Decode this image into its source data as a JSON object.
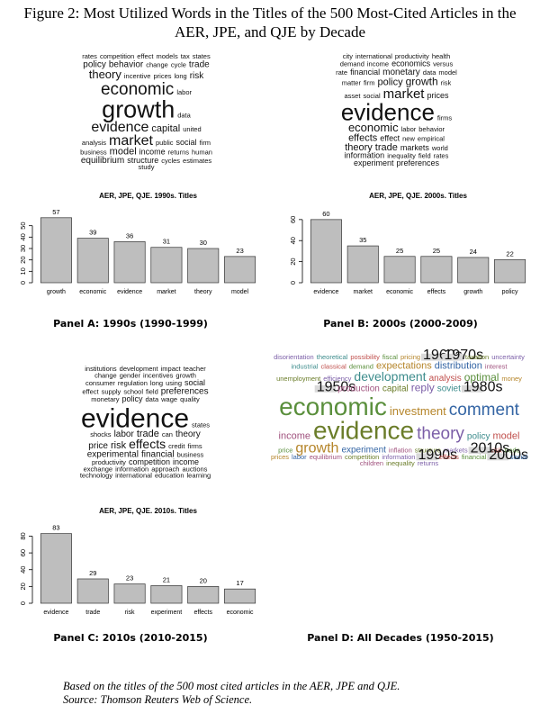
{
  "title": "Figure 2: Most Utilized Words in the Titles of the 500 Most-Cited Articles in the AER, JPE, and QJE by Decade",
  "clouds": [
    {
      "words": [
        "rates",
        "competition",
        "effect",
        "models",
        "tax",
        "states",
        "policy",
        "behavior",
        "change",
        "cycle",
        "trade",
        "theory",
        "incentive",
        "prices",
        "long",
        "risk",
        "economic",
        "labor",
        "growth",
        "data",
        "evidence",
        "capital",
        "united",
        "analysis",
        "market",
        "public",
        "social",
        "firm",
        "business",
        "model",
        "income",
        "returns",
        "human",
        "equilibrium",
        "structure",
        "cycles",
        "estimates",
        "study"
      ]
    },
    {
      "words": [
        "city",
        "international",
        "productivity",
        "health",
        "demand",
        "income",
        "economics",
        "versus",
        "rate",
        "financial",
        "monetary",
        "data",
        "model",
        "matter",
        "firm",
        "policy",
        "growth",
        "risk",
        "asset",
        "social",
        "market",
        "prices",
        "evidence",
        "firms",
        "economic",
        "labor",
        "behavior",
        "effects",
        "effect",
        "new",
        "empirical",
        "theory",
        "trade",
        "markets",
        "world",
        "information",
        "inequality",
        "field",
        "rates",
        "experiment",
        "preferences"
      ]
    },
    {
      "words": [
        "institutions",
        "development",
        "impact",
        "teacher",
        "change",
        "gender",
        "incentives",
        "growth",
        "consumer",
        "regulation",
        "long",
        "using",
        "social",
        "effect",
        "supply",
        "school",
        "field",
        "preferences",
        "monetary",
        "policy",
        "data",
        "wage",
        "quality",
        "evidence",
        "states",
        "shocks",
        "labor",
        "trade",
        "can",
        "theory",
        "price",
        "risk",
        "effects",
        "credit",
        "firms",
        "experimental",
        "financial",
        "business",
        "productivity",
        "competition",
        "income",
        "exchange",
        "information",
        "approach",
        "auctions",
        "technology",
        "international",
        "education",
        "learning"
      ]
    },
    {
      "words": [
        "disorientation",
        "theoretical",
        "possibility",
        "fiscal",
        "pricing",
        "1960s",
        "1970s",
        "taxation",
        "uncertainty",
        "industrial",
        "classical",
        "demand",
        "expectations",
        "distribution",
        "interest",
        "unemployment",
        "efficiency",
        "development",
        "analysis",
        "optimal",
        "money",
        "1950s",
        "production",
        "capital",
        "reply",
        "soviet",
        "1980s",
        "economic",
        "investment",
        "comment",
        "income",
        "evidence",
        "theory",
        "policy",
        "model",
        "price",
        "growth",
        "experiment",
        "inflation",
        "structure",
        "markets",
        "2010s",
        "risk",
        "trade",
        "prices",
        "labor",
        "equilibrium",
        "competition",
        "information",
        "1990s",
        "effects",
        "financial",
        "2000s",
        "social",
        "children",
        "inequality",
        "returns"
      ]
    }
  ],
  "chart_data": [
    {
      "type": "bar",
      "title": "AER, JPE, QJE. 1990s. Titles",
      "categories": [
        "growth",
        "economic",
        "evidence",
        "market",
        "theory",
        "model"
      ],
      "values": [
        57,
        39,
        36,
        31,
        30,
        23
      ],
      "color": "#bebebe",
      "ylim": [
        0,
        60
      ],
      "yticks": [
        0,
        10,
        20,
        30,
        40,
        50
      ]
    },
    {
      "type": "bar",
      "title": "AER, JPE, QJE. 2000s. Titles",
      "categories": [
        "evidence",
        "market",
        "economic",
        "effects",
        "growth",
        "policy"
      ],
      "values": [
        60,
        35,
        25,
        25,
        24,
        22
      ],
      "color": "#bebebe",
      "ylim": [
        0,
        65
      ],
      "yticks": [
        0,
        20,
        40,
        60
      ]
    },
    {
      "type": "bar",
      "title": "AER, JPE, QJE. 2010s. Titles",
      "categories": [
        "evidence",
        "trade",
        "risk",
        "experiment",
        "effects",
        "economic"
      ],
      "values": [
        83,
        29,
        23,
        21,
        20,
        17
      ],
      "color": "#bebebe",
      "ylim": [
        0,
        88
      ],
      "yticks": [
        0,
        20,
        40,
        60,
        80
      ]
    }
  ],
  "captions": [
    "Panel A: 1990s (1990-1999)",
    "Panel B: 2000s (2000-2009)",
    "Panel C: 2010s (2010-2015)",
    "Panel D: All Decades (1950-2015)"
  ],
  "footnote": [
    "Based on the titles of the 500 most cited articles in the AER, JPE and QJE.",
    "Source: Thomson Reuters Web of Science."
  ]
}
